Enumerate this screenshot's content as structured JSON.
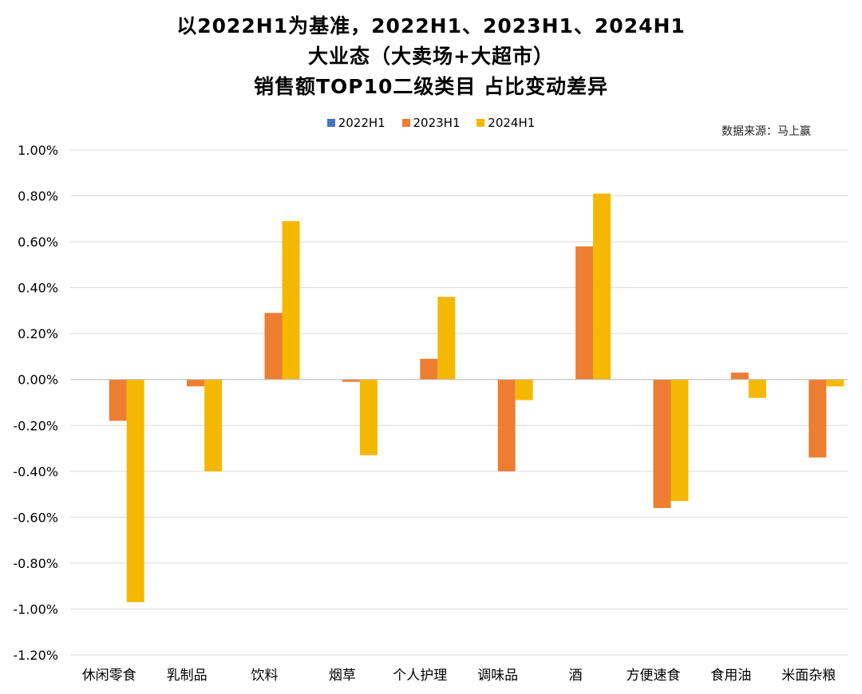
{
  "title_lines": [
    "以2022H1为基准，2022H1、2023H1、2024H1",
    "大业态（大卖场+大超市）",
    "销售额TOP10二级类目 占比变动差异"
  ],
  "source_text": "数据来源：马上赢",
  "chart_data": {
    "type": "bar",
    "title": "以2022H1为基准，2022H1、2023H1、2024H1 大业态（大卖场+大超市） 销售额TOP10二级类目 占比变动差异",
    "categories": [
      "休闲零食",
      "乳制品",
      "饮料",
      "烟草",
      "个人护理",
      "调味品",
      "酒",
      "方便速食",
      "食用油",
      "米面杂粮"
    ],
    "series": [
      {
        "name": "2022H1",
        "color": "#4472C4",
        "values": [
          0,
          0,
          0,
          0,
          0,
          0,
          0,
          0,
          0,
          0
        ]
      },
      {
        "name": "2023H1",
        "color": "#ED7D31",
        "values": [
          -0.18,
          -0.03,
          0.29,
          -0.01,
          0.09,
          -0.4,
          0.58,
          -0.56,
          0.03,
          -0.34
        ]
      },
      {
        "name": "2024H1",
        "color": "#F5B800",
        "values": [
          -0.97,
          -0.4,
          0.69,
          -0.33,
          0.36,
          -0.09,
          0.81,
          -0.53,
          -0.08,
          -0.03
        ]
      }
    ],
    "unit": "%",
    "ylim": [
      -1.2,
      1.0
    ],
    "yticks": [
      "1.00%",
      "0.80%",
      "0.60%",
      "0.40%",
      "0.20%",
      "0.00%",
      "-0.20%",
      "-0.40%",
      "-0.60%",
      "-0.80%",
      "-1.00%",
      "-1.20%"
    ],
    "ytick_values": [
      1.0,
      0.8,
      0.6,
      0.4,
      0.2,
      0.0,
      -0.2,
      -0.4,
      -0.6,
      -0.8,
      -1.0,
      -1.2
    ],
    "grid": true,
    "legend_position": "top"
  }
}
